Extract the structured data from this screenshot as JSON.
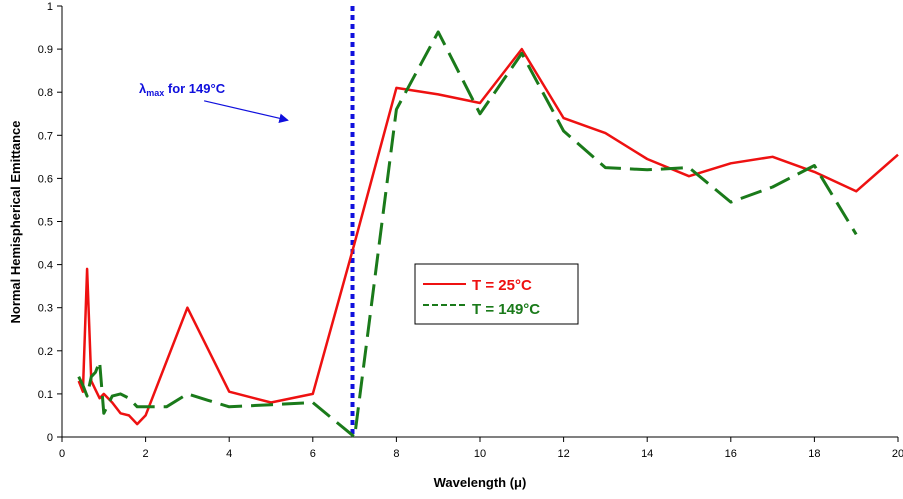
{
  "chart_data": {
    "type": "line",
    "title": "",
    "xlabel": "Wavelength (μ)",
    "ylabel": "Normal Hemispherical Emittance",
    "xlim": [
      0,
      20
    ],
    "ylim": [
      0,
      1
    ],
    "xticks": [
      0,
      2,
      4,
      6,
      8,
      10,
      12,
      14,
      16,
      18,
      20
    ],
    "yticks": [
      0,
      0.1,
      0.2,
      0.3,
      0.4,
      0.5,
      0.6,
      0.7,
      0.8,
      0.9,
      1
    ],
    "xtick_labels": [
      "0",
      "2",
      "4",
      "6",
      "8",
      "10",
      "12",
      "14",
      "16",
      "18",
      "20"
    ],
    "ytick_labels": [
      "0",
      "0.1",
      "0.2",
      "0.3",
      "0.4",
      "0.5",
      "0.6",
      "0.7",
      "0.8",
      "0.9",
      "1"
    ],
    "grid": false,
    "legend_position": "center",
    "series": [
      {
        "name": "T = 25°C",
        "color": "#ee1111",
        "style": "solid",
        "x": [
          0.4,
          0.5,
          0.6,
          0.7,
          0.8,
          0.9,
          1.0,
          1.2,
          1.4,
          1.6,
          1.8,
          2.0,
          3.0,
          4.0,
          5.0,
          6.0,
          7.0,
          8.0,
          9.0,
          10.0,
          11.0,
          12.0,
          13.0,
          14.0,
          15.0,
          16.0,
          17.0,
          18.0,
          19.0,
          20.0
        ],
        "y": [
          0.13,
          0.105,
          0.39,
          0.13,
          0.11,
          0.09,
          0.1,
          0.08,
          0.055,
          0.05,
          0.03,
          0.05,
          0.3,
          0.105,
          0.08,
          0.1,
          0.45,
          0.81,
          0.795,
          0.775,
          0.9,
          0.74,
          0.705,
          0.645,
          0.605,
          0.635,
          0.65,
          0.615,
          0.57,
          0.655
        ]
      },
      {
        "name": "T = 149°C",
        "color": "#1a7a1a",
        "style": "dashed",
        "x": [
          0.4,
          0.5,
          0.6,
          0.7,
          0.8,
          0.9,
          1.0,
          1.2,
          1.4,
          1.6,
          1.8,
          2.0,
          2.5,
          3.0,
          3.5,
          4.0,
          5.0,
          6.0,
          6.5,
          7.0,
          8.0,
          9.0,
          10.0,
          11.0,
          12.0,
          13.0,
          14.0,
          15.0,
          16.0,
          17.0,
          18.0,
          19.0
        ],
        "y": [
          0.14,
          0.12,
          0.095,
          0.14,
          0.15,
          0.175,
          0.055,
          0.095,
          0.1,
          0.09,
          0.07,
          0.07,
          0.07,
          0.1,
          0.085,
          0.07,
          0.075,
          0.08,
          0.04,
          0.0,
          0.76,
          0.94,
          0.75,
          0.89,
          0.71,
          0.625,
          0.62,
          0.625,
          0.545,
          0.58,
          0.63,
          0.47
        ]
      }
    ],
    "reference_line": {
      "x": 6.95,
      "color": "#1010dd",
      "style": "dotted"
    },
    "annotation": {
      "text_main": "λ",
      "text_sub": "max",
      "text_rest": " for 149°C",
      "color": "#1010dd",
      "arrow_from": [
        3.4,
        0.78
      ],
      "arrow_to": [
        5.4,
        0.735
      ]
    }
  }
}
